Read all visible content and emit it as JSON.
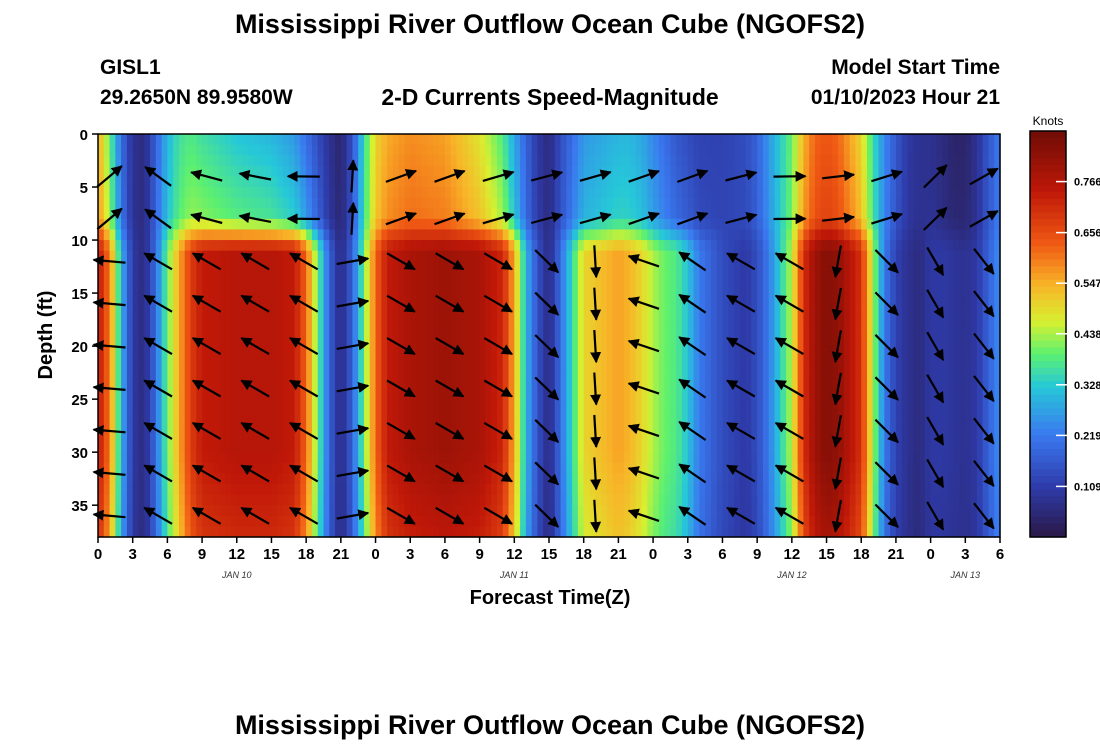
{
  "title": "Mississippi River Outflow Ocean Cube (NGOFS2)",
  "footer_title": "Mississippi River Outflow Ocean Cube (NGOFS2)",
  "station": {
    "id": "GISL1",
    "coords": "29.2650N  89.9580W"
  },
  "model": {
    "label": "Model Start Time",
    "start": "01/10/2023 Hour 21"
  },
  "chart_data": {
    "type": "heatmap",
    "title": "2-D Currents Speed-Magnitude",
    "xlabel": "Forecast Time(Z)",
    "ylabel": "Depth (ft)",
    "ylim": [
      0,
      38
    ],
    "y_ticks": [
      0,
      5,
      10,
      15,
      20,
      25,
      30,
      35
    ],
    "x_ticks": [
      "0",
      "3",
      "6",
      "9",
      "12",
      "15",
      "18",
      "21",
      "0",
      "3",
      "6",
      "9",
      "12",
      "15",
      "18",
      "21",
      "0",
      "3",
      "6",
      "9",
      "12",
      "15",
      "18",
      "21",
      "0",
      "3",
      "6"
    ],
    "x_range_hours": [
      0,
      78
    ],
    "date_labels": [
      {
        "text": "JAN 10",
        "hour": 12
      },
      {
        "text": "JAN 11",
        "hour": 36
      },
      {
        "text": "JAN 12",
        "hour": 60
      },
      {
        "text": "JAN 13",
        "hour": 75
      }
    ],
    "colorbar": {
      "unit": "Knots",
      "min": 0.0,
      "max": 0.875,
      "ticks": [
        0.109,
        0.219,
        0.328,
        0.438,
        0.547,
        0.656,
        0.766
      ]
    },
    "speed_profile": {
      "hours": [
        0,
        1,
        2,
        3,
        4,
        5,
        6,
        7,
        8,
        9,
        12,
        15,
        17,
        18,
        19,
        20,
        21,
        22,
        23,
        24,
        25,
        27,
        30,
        33,
        35,
        36,
        37,
        38,
        39,
        40,
        42,
        45,
        46,
        47,
        48,
        49,
        50,
        51,
        52,
        54,
        56,
        57,
        58,
        60,
        61,
        62,
        63,
        64,
        66,
        67,
        68,
        69,
        70,
        71,
        72,
        73,
        74,
        75,
        76,
        77,
        78
      ],
      "deep": [
        0.75,
        0.6,
        0.3,
        0.1,
        0.06,
        0.2,
        0.4,
        0.55,
        0.68,
        0.74,
        0.76,
        0.76,
        0.74,
        0.62,
        0.4,
        0.18,
        0.06,
        0.18,
        0.4,
        0.62,
        0.74,
        0.78,
        0.8,
        0.78,
        0.72,
        0.55,
        0.3,
        0.15,
        0.06,
        0.2,
        0.5,
        0.56,
        0.54,
        0.5,
        0.44,
        0.4,
        0.38,
        0.32,
        0.22,
        0.14,
        0.1,
        0.14,
        0.22,
        0.45,
        0.7,
        0.8,
        0.84,
        0.82,
        0.7,
        0.45,
        0.22,
        0.12,
        0.08,
        0.06,
        0.1,
        0.1,
        0.09,
        0.08,
        0.1,
        0.18,
        0.25
      ],
      "surface": [
        0.55,
        0.4,
        0.2,
        0.08,
        0.06,
        0.18,
        0.3,
        0.36,
        0.38,
        0.36,
        0.32,
        0.3,
        0.26,
        0.2,
        0.14,
        0.08,
        0.04,
        0.15,
        0.35,
        0.5,
        0.55,
        0.58,
        0.56,
        0.48,
        0.38,
        0.28,
        0.18,
        0.1,
        0.06,
        0.14,
        0.26,
        0.3,
        0.3,
        0.28,
        0.24,
        0.2,
        0.16,
        0.14,
        0.12,
        0.12,
        0.14,
        0.18,
        0.26,
        0.4,
        0.54,
        0.62,
        0.64,
        0.62,
        0.5,
        0.36,
        0.24,
        0.16,
        0.1,
        0.08,
        0.08,
        0.06,
        0.04,
        0.04,
        0.08,
        0.16,
        0.22
      ]
    },
    "vector_directions": {
      "hours": [
        0,
        2,
        6,
        12,
        18,
        21,
        24,
        30,
        36,
        42,
        48,
        54,
        60,
        66,
        69,
        72,
        75,
        78
      ],
      "deep_angle_deg": [
        200,
        150,
        150,
        150,
        150,
        30,
        330,
        330,
        330,
        300,
        140,
        150,
        150,
        315,
        315,
        300,
        300,
        315
      ],
      "surface_angle_deg": [
        20,
        60,
        165,
        165,
        180,
        120,
        20,
        20,
        15,
        15,
        20,
        20,
        0,
        10,
        20,
        45,
        40,
        20
      ]
    }
  }
}
